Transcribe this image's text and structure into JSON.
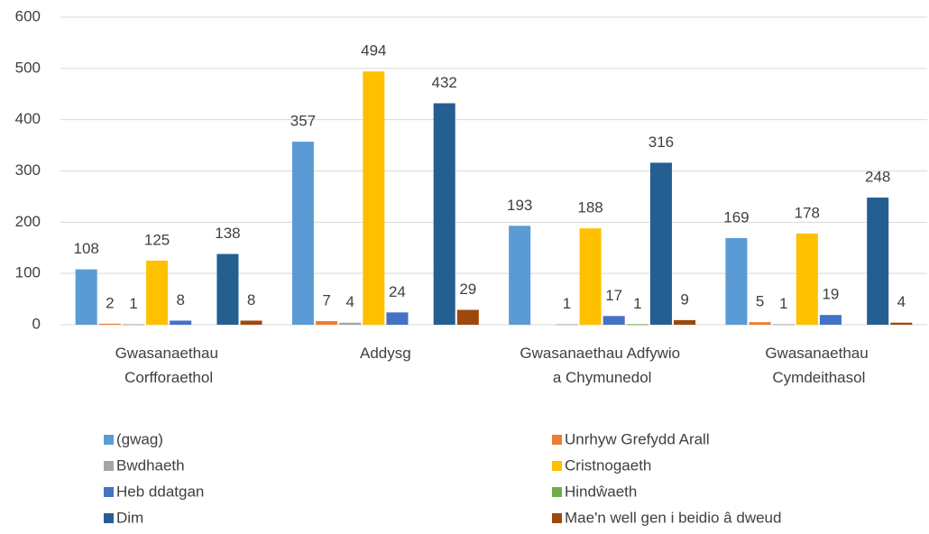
{
  "chart_data": {
    "type": "bar",
    "categories": [
      "Gwasanaethau Corfforaethol",
      "Addysg",
      "Gwasanaethau Adfywio a Chymunedol",
      "Gwasanaethau Cymdeithasol"
    ],
    "series": [
      {
        "name": "(gwag)",
        "color": "#5b9bd5",
        "values": [
          108,
          357,
          193,
          169
        ]
      },
      {
        "name": "Unrhyw Grefydd Arall",
        "color": "#ed7d31",
        "values": [
          2,
          7,
          null,
          5
        ]
      },
      {
        "name": "Bwdhaeth",
        "color": "#a5a5a5",
        "values": [
          1,
          4,
          1,
          1
        ]
      },
      {
        "name": "Cristnogaeth",
        "color": "#ffc000",
        "values": [
          125,
          494,
          188,
          178
        ]
      },
      {
        "name": "Heb ddatgan",
        "color": "#4472c4",
        "values": [
          8,
          24,
          17,
          19
        ]
      },
      {
        "name": "Hindŵaeth",
        "color": "#70ad47",
        "values": [
          null,
          null,
          1,
          null
        ]
      },
      {
        "name": "Dim",
        "color": "#255e91",
        "values": [
          138,
          432,
          316,
          248
        ]
      },
      {
        "name": "Mae'n well gen i beidio â dweud",
        "color": "#9e480e",
        "values": [
          8,
          29,
          9,
          4
        ]
      }
    ],
    "ylim": [
      0,
      600
    ],
    "yticks": [
      0,
      100,
      200,
      300,
      400,
      500,
      600
    ],
    "grid": true,
    "legend": "bottom"
  }
}
